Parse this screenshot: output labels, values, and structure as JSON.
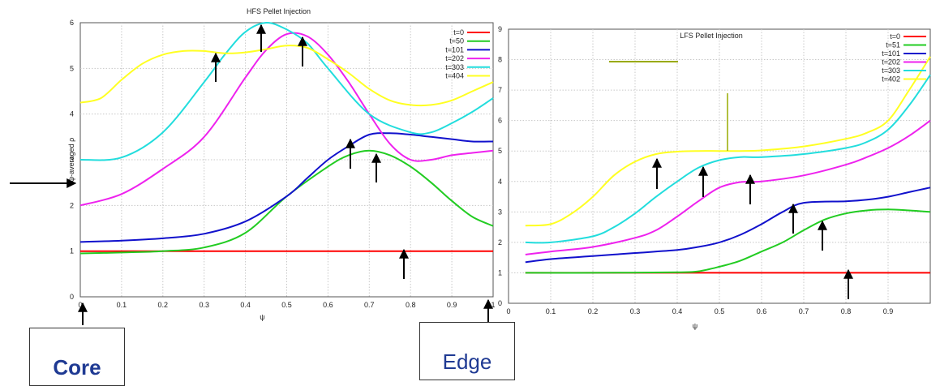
{
  "chart_data": [
    {
      "type": "line",
      "title": "HFS Pellet Injection",
      "xlabel": "ψ",
      "ylabel": "ψ-averaged ρ",
      "xlim": [
        0,
        1
      ],
      "ylim": [
        0,
        6
      ],
      "xticks": [
        "0",
        "0.1",
        "0.2",
        "0.3",
        "0.4",
        "0.5",
        "0.6",
        "0.7",
        "0.8",
        "0.9",
        "1"
      ],
      "yticks": [
        "0",
        "1",
        "2",
        "3",
        "4",
        "5",
        "6"
      ],
      "grid": true,
      "legend_position": "top-right",
      "series": [
        {
          "name": "t=0",
          "color": "#ff0000",
          "x": [
            0.0,
            0.2,
            0.4,
            0.6,
            0.8,
            1.0
          ],
          "y": [
            1,
            1,
            1,
            1,
            1,
            1
          ]
        },
        {
          "name": "t=50",
          "color": "#22cc22",
          "x": [
            0.0,
            0.1,
            0.2,
            0.3,
            0.4,
            0.5,
            0.6,
            0.65,
            0.7,
            0.75,
            0.8,
            0.85,
            0.9,
            0.95,
            1.0
          ],
          "y": [
            0.95,
            0.97,
            1.0,
            1.08,
            1.4,
            2.2,
            2.85,
            3.1,
            3.2,
            3.1,
            2.85,
            2.5,
            2.1,
            1.75,
            1.55
          ]
        },
        {
          "name": "t=101",
          "color": "#1111cc",
          "x": [
            0.0,
            0.1,
            0.2,
            0.3,
            0.4,
            0.5,
            0.55,
            0.6,
            0.65,
            0.7,
            0.75,
            0.8,
            0.85,
            0.9,
            0.95,
            1.0
          ],
          "y": [
            1.2,
            1.23,
            1.28,
            1.38,
            1.65,
            2.2,
            2.6,
            3.0,
            3.3,
            3.55,
            3.58,
            3.55,
            3.5,
            3.45,
            3.4,
            3.4
          ]
        },
        {
          "name": "t=202",
          "color": "#ee22ee",
          "x": [
            0.0,
            0.1,
            0.2,
            0.3,
            0.4,
            0.45,
            0.5,
            0.55,
            0.6,
            0.65,
            0.7,
            0.75,
            0.8,
            0.85,
            0.9,
            0.95,
            1.0
          ],
          "y": [
            2.0,
            2.25,
            2.8,
            3.5,
            4.8,
            5.4,
            5.75,
            5.7,
            5.3,
            4.7,
            4.0,
            3.35,
            3.0,
            3.0,
            3.1,
            3.15,
            3.2
          ]
        },
        {
          "name": "t=303",
          "color": "#22dddd",
          "x": [
            0.0,
            0.1,
            0.2,
            0.3,
            0.35,
            0.4,
            0.45,
            0.5,
            0.55,
            0.6,
            0.7,
            0.8,
            0.85,
            0.9,
            0.95,
            1.0
          ],
          "y": [
            3.0,
            3.05,
            3.6,
            4.7,
            5.3,
            5.8,
            6.0,
            5.85,
            5.55,
            5.0,
            4.0,
            3.6,
            3.6,
            3.8,
            4.05,
            4.35
          ]
        },
        {
          "name": "t=404",
          "color": "#ffff22",
          "x": [
            0.0,
            0.05,
            0.1,
            0.15,
            0.2,
            0.25,
            0.3,
            0.35,
            0.4,
            0.45,
            0.5,
            0.55,
            0.6,
            0.65,
            0.7,
            0.75,
            0.8,
            0.85,
            0.9,
            0.95,
            1.0
          ],
          "y": [
            4.25,
            4.35,
            4.75,
            5.1,
            5.3,
            5.38,
            5.38,
            5.33,
            5.35,
            5.42,
            5.5,
            5.45,
            5.2,
            4.9,
            4.55,
            4.3,
            4.2,
            4.2,
            4.3,
            4.5,
            4.7
          ]
        }
      ]
    },
    {
      "type": "line",
      "title": "LFS Pellet Injection",
      "xlabel": "ψ",
      "ylabel": "",
      "xlim": [
        0,
        1
      ],
      "ylim": [
        0,
        9
      ],
      "xticks": [
        "0",
        "0.1",
        "0.2",
        "0.3",
        "0.4",
        "0.5",
        "0.6",
        "0.7",
        "0.8",
        "0.9"
      ],
      "yticks": [
        "0",
        "1",
        "2",
        "3",
        "4",
        "5",
        "6",
        "7",
        "8",
        "9"
      ],
      "grid": true,
      "legend_position": "top-right",
      "series": [
        {
          "name": "t=0",
          "color": "#ff0000",
          "x": [
            0.04,
            0.2,
            0.4,
            0.6,
            0.8,
            1.0
          ],
          "y": [
            1,
            1,
            1,
            1,
            1,
            1
          ]
        },
        {
          "name": "t=51",
          "color": "#22cc22",
          "x": [
            0.04,
            0.2,
            0.4,
            0.45,
            0.5,
            0.55,
            0.6,
            0.65,
            0.7,
            0.75,
            0.8,
            0.85,
            0.9,
            0.95,
            1.0
          ],
          "y": [
            1.0,
            1.0,
            1.02,
            1.05,
            1.2,
            1.4,
            1.7,
            2.0,
            2.4,
            2.75,
            2.95,
            3.05,
            3.08,
            3.05,
            3.0
          ]
        },
        {
          "name": "t=101",
          "color": "#1111cc",
          "x": [
            0.04,
            0.1,
            0.2,
            0.3,
            0.4,
            0.45,
            0.5,
            0.55,
            0.6,
            0.65,
            0.7,
            0.8,
            0.85,
            0.9,
            0.95,
            1.0
          ],
          "y": [
            1.35,
            1.45,
            1.55,
            1.65,
            1.75,
            1.85,
            2.0,
            2.25,
            2.6,
            3.0,
            3.3,
            3.35,
            3.4,
            3.5,
            3.65,
            3.8
          ]
        },
        {
          "name": "t=202",
          "color": "#ee22ee",
          "x": [
            0.04,
            0.1,
            0.2,
            0.3,
            0.35,
            0.4,
            0.45,
            0.5,
            0.55,
            0.6,
            0.7,
            0.8,
            0.85,
            0.9,
            0.95,
            1.0
          ],
          "y": [
            1.6,
            1.7,
            1.85,
            2.15,
            2.4,
            2.85,
            3.35,
            3.8,
            3.98,
            4.0,
            4.2,
            4.55,
            4.8,
            5.1,
            5.5,
            6.0
          ]
        },
        {
          "name": "t=303",
          "color": "#22dddd",
          "x": [
            0.04,
            0.1,
            0.2,
            0.25,
            0.3,
            0.35,
            0.4,
            0.45,
            0.5,
            0.55,
            0.6,
            0.7,
            0.8,
            0.85,
            0.9,
            0.95,
            1.0
          ],
          "y": [
            2.0,
            2.0,
            2.2,
            2.5,
            2.95,
            3.5,
            4.0,
            4.45,
            4.7,
            4.8,
            4.8,
            4.9,
            5.1,
            5.3,
            5.7,
            6.5,
            7.5
          ]
        },
        {
          "name": "t=402",
          "color": "#ffff22",
          "x": [
            0.04,
            0.1,
            0.15,
            0.2,
            0.25,
            0.3,
            0.35,
            0.4,
            0.45,
            0.5,
            0.55,
            0.6,
            0.7,
            0.8,
            0.85,
            0.9,
            0.95,
            1.0
          ],
          "y": [
            2.55,
            2.6,
            2.95,
            3.5,
            4.2,
            4.65,
            4.9,
            4.98,
            5.0,
            5.0,
            5.0,
            5.02,
            5.15,
            5.4,
            5.6,
            6.0,
            7.0,
            8.1
          ]
        }
      ]
    }
  ],
  "annotations": {
    "core_label": "Core",
    "edge_label": "Edge",
    "colors": {
      "label_text": "#1f3a93",
      "arrow": "#000000",
      "marker": "#99aa00"
    }
  }
}
